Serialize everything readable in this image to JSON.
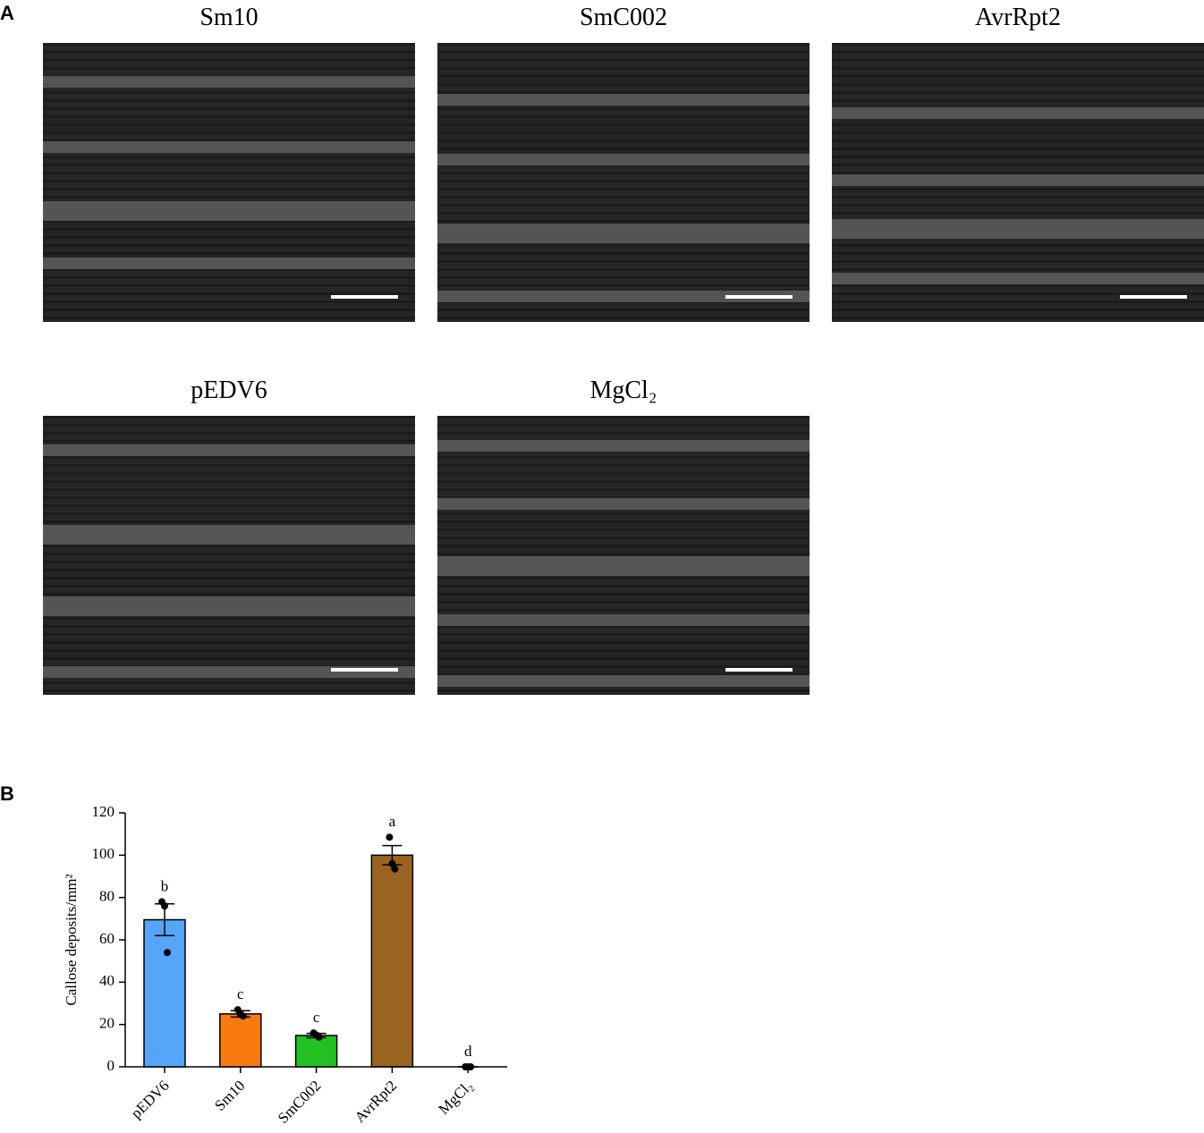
{
  "panels": {
    "a": "A",
    "b": "B"
  },
  "images": [
    {
      "title": "Sm10"
    },
    {
      "title": "SmC002"
    },
    {
      "title": "AvrRpt2"
    },
    {
      "title": "pEDV6"
    },
    {
      "title": "MgCl₂"
    }
  ],
  "chart_data": {
    "type": "bar",
    "y_label": "Callose deposits/mm²",
    "categories": [
      "pEDV6",
      "Sm10",
      "SmC002",
      "AvrRpt2",
      "MgCl₂"
    ],
    "values": [
      69.5,
      25,
      14.8,
      100,
      0
    ],
    "errors": [
      7.5,
      1.5,
      1,
      4.5,
      0
    ],
    "points": [
      [
        78,
        76,
        54
      ],
      [
        27,
        25,
        24
      ],
      [
        16,
        15,
        14
      ],
      [
        108.5,
        96,
        93.5
      ],
      [
        0,
        0,
        0
      ]
    ],
    "value_labels": [
      "b",
      "c",
      "c",
      "a",
      "d"
    ],
    "colors": [
      "#55a5f8",
      "#fa7a12",
      "#22c022",
      "#9a6420",
      "#ffffff"
    ],
    "ylim": [
      0,
      120
    ],
    "yticks": [
      0,
      20,
      40,
      60,
      80,
      100,
      120
    ]
  }
}
